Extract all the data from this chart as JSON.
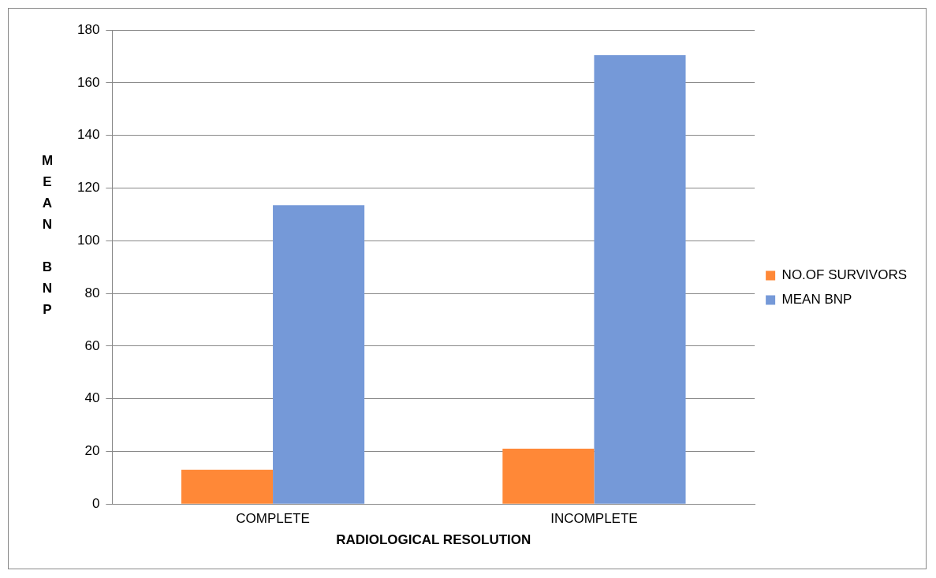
{
  "chart_data": {
    "type": "bar",
    "xlabel": "RADIOLOGICAL RESOLUTION",
    "ylabel": "MEAN BNP",
    "categories": [
      "COMPLETE",
      "INCOMPLETE"
    ],
    "series": [
      {
        "name": "NO.OF SURVIVORS",
        "color": "#ff8837",
        "values": [
          13,
          21
        ]
      },
      {
        "name": "MEAN BNP",
        "color": "#7599d8",
        "values": [
          113.5,
          170.5
        ]
      }
    ],
    "ylim": [
      0,
      180
    ],
    "yticks": [
      0,
      20,
      40,
      60,
      80,
      100,
      120,
      140,
      160,
      180
    ],
    "grid": "y",
    "legend": "right"
  }
}
